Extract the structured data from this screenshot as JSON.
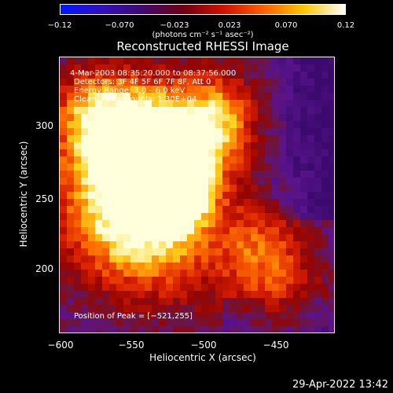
{
  "colorbar": {
    "ticks": [
      "−0.12",
      "−0.070",
      "−0.023",
      "0.023",
      "0.070",
      "0.12"
    ],
    "units": "(photons cm⁻² s⁻¹ asec⁻²)",
    "colors": [
      "#0018ff",
      "#3010c0",
      "#400a70",
      "#700010",
      "#d01000",
      "#ff6000",
      "#ffc800",
      "#ffffff"
    ]
  },
  "plot": {
    "title": "Reconstructed RHESSI Image",
    "xlabel": "Heliocentric X (arcsec)",
    "ylabel": "Heliocentric Y (arcsec)",
    "x_ticks": [
      "−600",
      "−550",
      "−500",
      "−450"
    ],
    "y_ticks": [
      "300",
      "250",
      "200"
    ],
    "annotations": {
      "time_range": "4-Mar-2003 08:35:20.000 to 08:37:56.000",
      "detectors": "Detectors: 3F 4F 5F 6F 7F 8F, Att 0",
      "energy": "Energy Range: 3.0 – 6.0 keV",
      "method": "Clean",
      "counts": "Total counts: 1.30E+04",
      "peak": "Position of Peak = [−521,255]"
    },
    "peak_position": [
      -521,
      255
    ]
  },
  "footer": {
    "date": "29-Apr-2022 13:42"
  }
}
